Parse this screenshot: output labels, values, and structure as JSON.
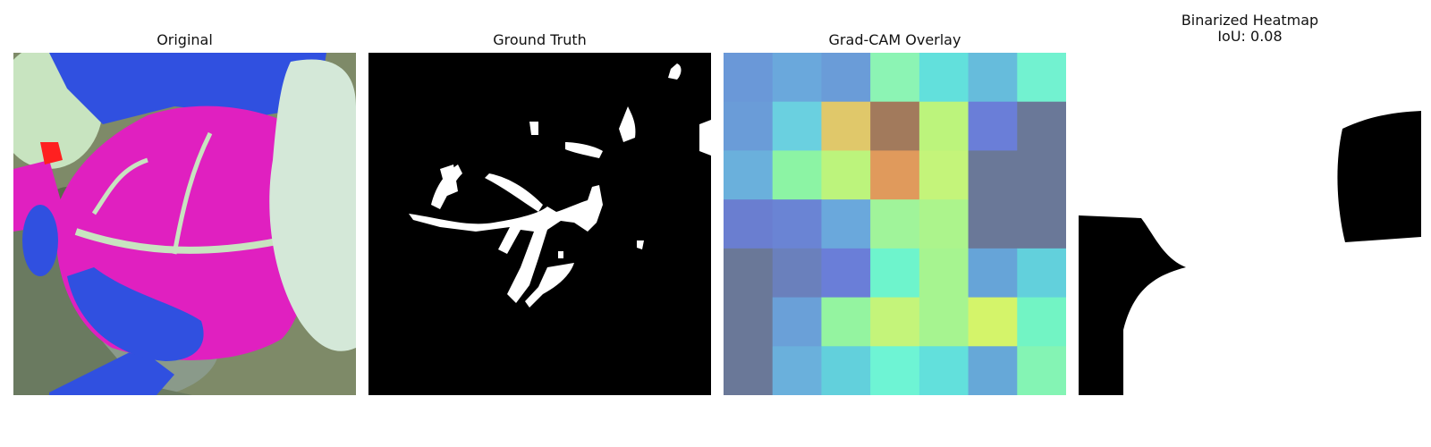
{
  "panels": {
    "original": {
      "title": "Original"
    },
    "ground_truth": {
      "title": "Ground Truth"
    },
    "gradcam": {
      "title": "Grad-CAM Overlay",
      "heatmap_colors": [
        [
          "#6a98d8",
          "#6aa8dc",
          "#6a9cd8",
          "#8cf4b4",
          "#62e0dc",
          "#66bcdc",
          "#72f2d0"
        ],
        [
          "#6a9cd8",
          "#6ad0e0",
          "#e0c86a",
          "#a27a5c",
          "#bcf47c",
          "#6a7ed8",
          "#6a7898"
        ],
        [
          "#6ab0dc",
          "#8cf4a4",
          "#bcf47c",
          "#e09a5c",
          "#c4f47a",
          "#6a7898",
          "#6a7898"
        ],
        [
          "#6a7ed0",
          "#6a84d4",
          "#6aa8dc",
          "#a0f49a",
          "#acf48c",
          "#6a7898",
          "#6a7898"
        ],
        [
          "#6a7898",
          "#6a80bc",
          "#6a7ed8",
          "#6ef4cc",
          "#a6f490",
          "#66a4d8",
          "#62d0dc"
        ],
        [
          "#6a7898",
          "#6aa0d8",
          "#94f4a0",
          "#c4f47a",
          "#a6f490",
          "#d4f46a",
          "#72f4c4"
        ],
        [
          "#6a7898",
          "#6ab0dc",
          "#62d0dc",
          "#6ef4d4",
          "#62e0dc",
          "#66a8d8",
          "#84f4b4"
        ]
      ]
    },
    "binarized": {
      "title": "Binarized Heatmap\nIoU: 0.08"
    }
  }
}
